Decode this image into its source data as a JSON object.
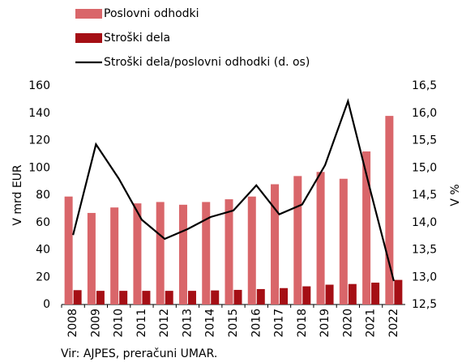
{
  "chart_data": {
    "type": "bar_line",
    "y_label": "V mrd EUR",
    "y2_label": "V %",
    "source": "Vir: AJPES, preračuni UMAR.",
    "categories": [
      "2008",
      "2009",
      "2010",
      "2011",
      "2012",
      "2013",
      "2014",
      "2015",
      "2016",
      "2017",
      "2018",
      "2019",
      "2020",
      "2021",
      "2022"
    ],
    "series": [
      {
        "name": "Poslovni odhodki",
        "color": "#d9666a",
        "kind": "bar",
        "values": [
          79,
          67,
          71,
          74,
          75,
          73,
          75,
          77,
          79,
          88,
          94,
          97,
          92,
          112,
          138
        ]
      },
      {
        "name": "Stroški dela",
        "color": "#a50f15",
        "kind": "bar",
        "values": [
          10.5,
          10,
          10,
          10,
          10,
          10,
          10.3,
          10.7,
          11.3,
          12,
          13.3,
          14.5,
          15,
          16,
          18
        ]
      },
      {
        "name": "Stroški dela/poslovni odhodki (d. os)",
        "color": "#000000",
        "kind": "line",
        "axis": "y2",
        "values": [
          13.77,
          15.43,
          14.8,
          14.05,
          13.7,
          13.88,
          14.1,
          14.22,
          14.68,
          14.15,
          14.33,
          15.05,
          16.22,
          14.55,
          12.93
        ]
      }
    ],
    "ylim": [
      0,
      160
    ],
    "yticks": [
      0,
      20,
      40,
      60,
      80,
      100,
      120,
      140,
      160
    ],
    "y2lim": [
      12.5,
      16.5
    ],
    "y2ticks": [
      {
        "value": 12.5,
        "label": "12,5"
      },
      {
        "value": 13,
        "label": "13,0"
      },
      {
        "value": 13.5,
        "label": "13,5"
      },
      {
        "value": 14,
        "label": "14,0"
      },
      {
        "value": 14.5,
        "label": "14,5"
      },
      {
        "value": 15,
        "label": "15,0"
      },
      {
        "value": 15.5,
        "label": "15,5"
      },
      {
        "value": 16,
        "label": "16,0"
      },
      {
        "value": 16.5,
        "label": "16,5"
      }
    ],
    "grid": false,
    "legend": "top"
  }
}
